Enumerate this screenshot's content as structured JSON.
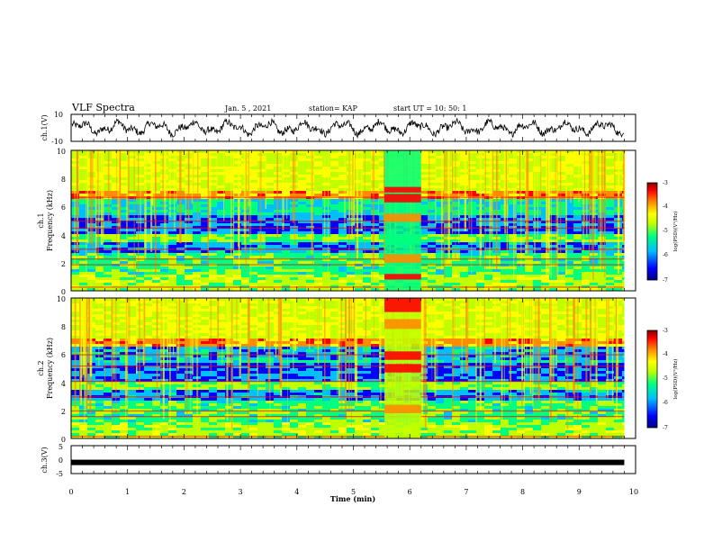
{
  "header": {
    "title": "VLF Spectra",
    "date": "Jan. 5 , 2021",
    "station": "station= KAP",
    "start": "start UT =  10: 50: 1"
  },
  "colors": {
    "line": "#000000",
    "colormap": [
      "#00007f",
      "#0000ff",
      "#00bfff",
      "#00ff7f",
      "#bfff00",
      "#ffff00",
      "#ff8c00",
      "#ff0000",
      "#7f0000"
    ]
  },
  "chart_data": [
    {
      "type": "line",
      "ylabel": "ch.1(V)",
      "ylim": [
        -10,
        10
      ],
      "yticks": [
        "10",
        "-10"
      ],
      "xlim": [
        0,
        10
      ],
      "baseline": 0
    },
    {
      "type": "heatmap",
      "ylabel_channel": "ch.1",
      "ylabel": "Frequency (kHz)",
      "ylim": [
        0,
        10
      ],
      "yticks": [
        "0",
        "2",
        "4",
        "6",
        "8",
        "10"
      ],
      "xlim": [
        0,
        10
      ],
      "colorbar": {
        "label": "log(PSD)(V²/Hz)",
        "range": [
          -7,
          -3
        ],
        "ticks": [
          "-3",
          "-4",
          "-5",
          "-6",
          "-7"
        ]
      }
    },
    {
      "type": "heatmap",
      "ylabel_channel": "ch.2",
      "ylabel": "Frequency (kHz)",
      "ylim": [
        0,
        10
      ],
      "yticks": [
        "0",
        "2",
        "4",
        "6",
        "8",
        "10"
      ],
      "xlim": [
        0,
        10
      ],
      "colorbar": {
        "label": "log(PSD)(V²/Hz)",
        "range": [
          -7,
          -3
        ],
        "ticks": [
          "-3",
          "-4",
          "-5",
          "-6",
          "-7"
        ]
      }
    },
    {
      "type": "line",
      "ylabel": "ch.3(V)",
      "ylim": [
        -5,
        5
      ],
      "yticks": [
        "5",
        "0",
        "-5"
      ],
      "xlim": [
        0,
        10
      ],
      "values": [
        [
          0,
          -1
        ],
        [
          9.8,
          -1
        ]
      ]
    }
  ],
  "xaxis": {
    "label": "Time (min)",
    "ticks": [
      "0",
      "1",
      "2",
      "3",
      "4",
      "5",
      "6",
      "7",
      "8",
      "9",
      "10"
    ],
    "range": [
      0,
      10
    ],
    "data_end": 9.8
  }
}
